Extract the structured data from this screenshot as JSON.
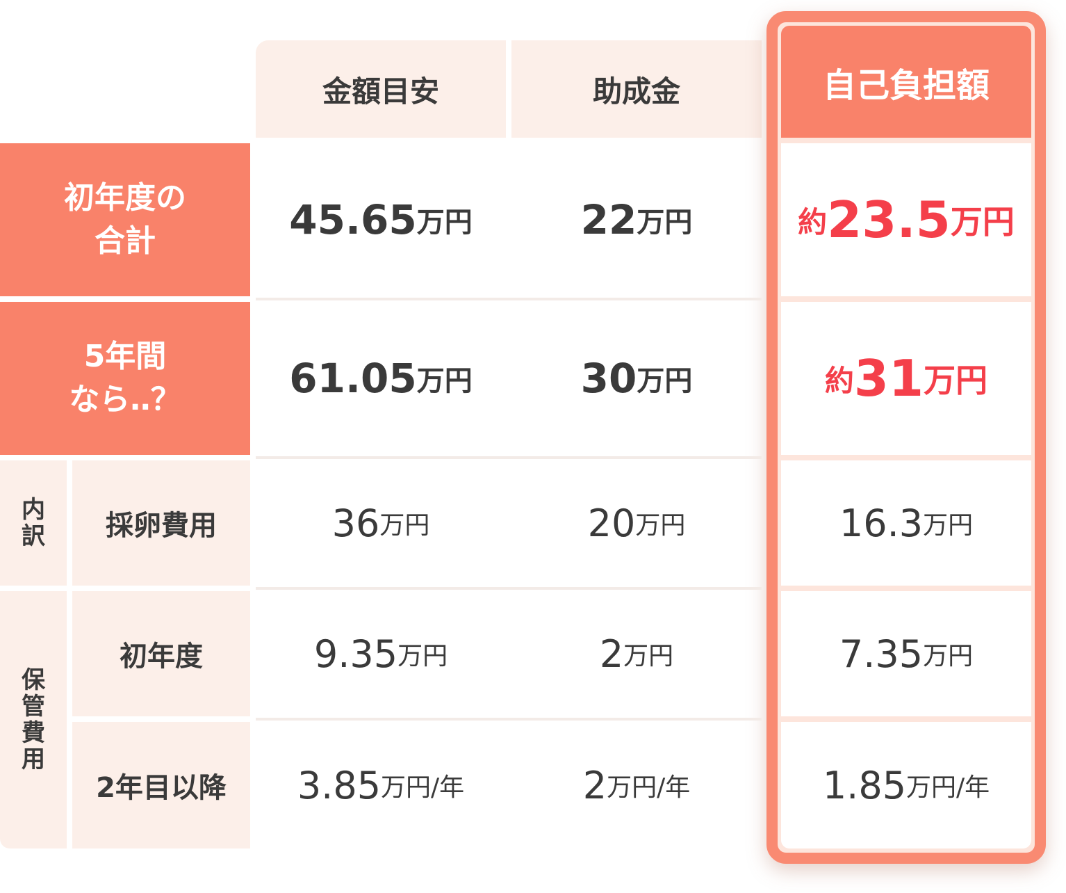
{
  "columns": {
    "estimate": "金額目安",
    "subsidy": "助成金",
    "self_pay": "自己負担額"
  },
  "rows": {
    "first_year_total": {
      "label_line1": "初年度の",
      "label_line2": "合計",
      "estimate_num": "45.65",
      "estimate_unit": "万円",
      "subsidy_num": "22",
      "subsidy_unit": "万円",
      "self_prefix": "約",
      "self_num": "23.5",
      "self_unit": "万円"
    },
    "five_years": {
      "label_line1": "5年間",
      "label_line2": "なら‥？",
      "estimate_num": "61.05",
      "estimate_unit": "万円",
      "subsidy_num": "30",
      "subsidy_unit": "万円",
      "self_prefix": "約",
      "self_num": "31",
      "self_unit": "万円"
    },
    "egg_retrieval": {
      "label": "採卵費用",
      "estimate_num": "36",
      "estimate_unit": "万円",
      "subsidy_num": "20",
      "subsidy_unit": "万円",
      "self_num": "16.3",
      "self_unit": "万円"
    },
    "storage_first_year": {
      "label": "初年度",
      "estimate_num": "9.35",
      "estimate_unit": "万円",
      "subsidy_num": "2",
      "subsidy_unit": "万円",
      "self_num": "7.35",
      "self_unit": "万円"
    },
    "storage_after_second": {
      "label": "2年目以降",
      "estimate_num": "3.85",
      "estimate_unit": "万円/年",
      "subsidy_num": "2",
      "subsidy_unit": "万円/年",
      "self_num": "1.85",
      "self_unit": "万円/年"
    }
  },
  "side_labels": {
    "breakdown": [
      "内",
      "訳"
    ],
    "storage_cost": [
      "保",
      "管",
      "費",
      "用"
    ]
  },
  "colors": {
    "accent": "#f9826a",
    "highlight_red": "#f43f4a",
    "light_bg": "#fcefe9",
    "text": "#3a3a3a"
  }
}
